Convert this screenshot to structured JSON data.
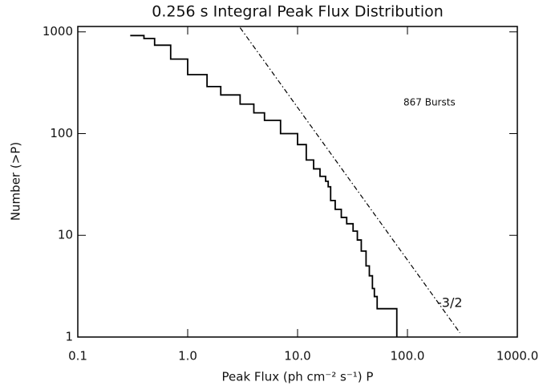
{
  "chart_data": {
    "type": "step-line",
    "title": "0.256 s Integral Peak Flux Distribution",
    "x_label": "Peak Flux (ph cm⁻² s⁻¹) P",
    "y_label": "Number (>P)",
    "xlim": [
      0.1,
      1000
    ],
    "ylim": [
      1,
      1130
    ],
    "xscale": "log",
    "yscale": "log",
    "xticks": [
      0.1,
      {
        "value": 1,
        "label": "1.0"
      },
      {
        "value": 10,
        "label": "10.0"
      },
      {
        "value": 100,
        "label": "100.0"
      },
      {
        "value": 1000,
        "label": "1000.0"
      }
    ],
    "yticks": [
      1,
      10,
      100,
      1000
    ],
    "series": [
      {
        "name": "bursts",
        "color": "#000000",
        "style": "solid",
        "x": [
          0.3,
          0.4,
          0.5,
          0.7,
          1.0,
          1.5,
          2,
          3,
          4,
          5,
          7,
          10,
          12,
          14,
          16,
          18,
          19,
          20,
          22,
          25,
          28,
          32,
          35,
          38,
          42,
          45,
          48,
          50,
          53,
          80,
          80
        ],
        "values": [
          920,
          860,
          740,
          540,
          380,
          290,
          240,
          195,
          160,
          135,
          100,
          78,
          55,
          45,
          38,
          34,
          30,
          22,
          18,
          15,
          13,
          11,
          9,
          7,
          5,
          4,
          3,
          2.5,
          1.9,
          1.9,
          1
        ]
      },
      {
        "name": "-3/2",
        "color": "#000000",
        "style": "dashdot",
        "x": [
          3.0,
          300
        ],
        "values": [
          1100,
          1.1
        ]
      }
    ],
    "annotations": [
      "867 Bursts",
      "-3/2"
    ]
  }
}
